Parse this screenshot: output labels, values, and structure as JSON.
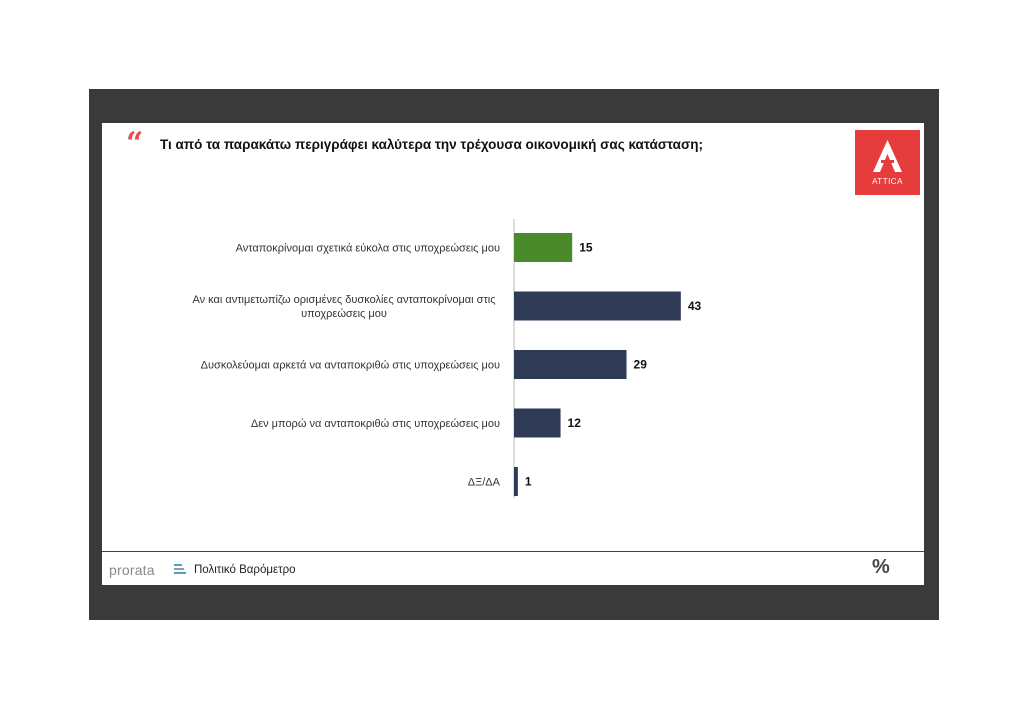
{
  "header": {
    "quote_mark": "“",
    "question": "Τι από τα παρακάτω περιγράφει καλύτερα την τρέχουσα οικονομική σας κατάσταση;"
  },
  "logo": {
    "text": "ATTICA",
    "color": "#e63c3c"
  },
  "footer": {
    "brand": "prorata",
    "subtitle": "Πολιτικό Βαρόμετρο",
    "symbol": "%"
  },
  "chart_data": {
    "type": "bar",
    "orientation": "horizontal",
    "title": "",
    "xlabel": "",
    "ylabel": "",
    "grid": false,
    "legend": "none",
    "categories": [
      [
        "Ανταποκρίνομαι σχετικά εύκολα στις υποχρεώσεις μου"
      ],
      [
        "Αν και αντιμετωπίζω ορισμένες δυσκολίες ανταποκρίνομαι στις",
        "υποχρεώσεις μου"
      ],
      [
        "Δυσκολεύομαι αρκετά να ανταποκριθώ στις υποχρεώσεις μου"
      ],
      [
        "Δεν μπορώ να ανταποκριθώ στις υποχρεώσεις μου"
      ],
      [
        "ΔΞ/ΔΑ"
      ]
    ],
    "values": [
      15,
      43,
      29,
      12,
      1
    ],
    "colors": [
      "#4a8a2a",
      "#2f3b56",
      "#2f3b56",
      "#2f3b56",
      "#2f3b56"
    ]
  }
}
